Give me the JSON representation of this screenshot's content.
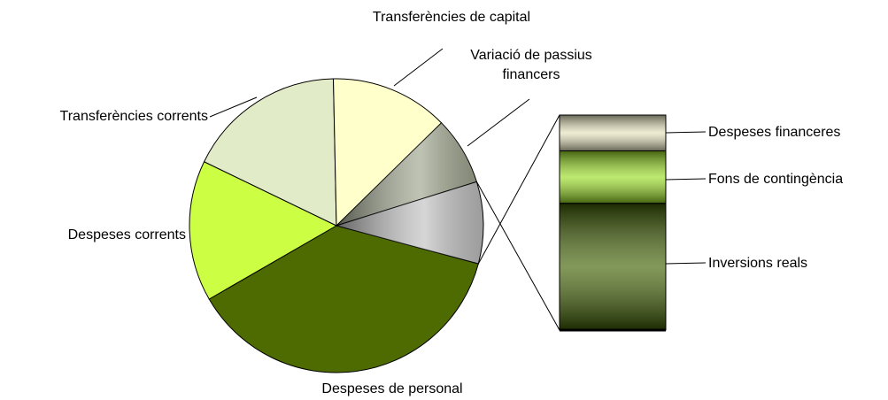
{
  "chart_data": {
    "type": "pie",
    "categories": [
      "Despeses de personal",
      "Despeses corrents",
      "Transferències corrents",
      "Transferències de capital",
      "Variació de passius financers"
    ],
    "values": [
      37.5,
      15.5,
      17.5,
      13,
      7.5
    ],
    "colors": [
      "#4d6b00",
      "#ccff44",
      "#e2ebc8",
      "#ffffcc",
      "#a4aa94"
    ],
    "bar": {
      "categories": [
        "Despeses financeres",
        "Fons de contingència",
        "Inversions reals"
      ],
      "values": [
        1.5,
        2.2,
        5.3
      ],
      "colors": [
        "#e6e2bc",
        "#99dd22",
        "#3f6000"
      ],
      "pie_color": "#c4c4c4"
    }
  }
}
